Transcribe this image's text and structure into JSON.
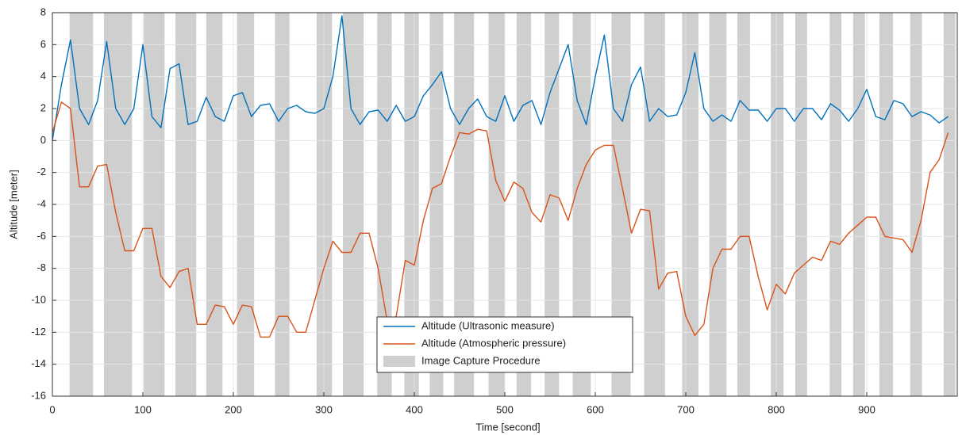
{
  "chart_data": {
    "type": "line",
    "xlabel": "Time [second]",
    "ylabel": "Altitude [meter]",
    "xlim": [
      0,
      1000
    ],
    "ylim": [
      -16,
      8
    ],
    "xticks": [
      0,
      100,
      200,
      300,
      400,
      500,
      600,
      700,
      800,
      900
    ],
    "yticks": [
      -16,
      -14,
      -12,
      -10,
      -8,
      -6,
      -4,
      -2,
      0,
      2,
      4,
      6,
      8
    ],
    "grid": true,
    "legend": "lower center",
    "bands": {
      "name": "Image Capture Procedure",
      "color": "#cfcfcf",
      "intervals": [
        [
          19,
          45
        ],
        [
          57,
          88
        ],
        [
          101,
          124
        ],
        [
          136,
          159
        ],
        [
          170,
          188
        ],
        [
          204,
          223
        ],
        [
          246,
          262
        ],
        [
          292,
          309
        ],
        [
          321,
          344
        ],
        [
          359,
          375
        ],
        [
          389,
          405
        ],
        [
          417,
          432
        ],
        [
          444,
          466
        ],
        [
          482,
          500
        ],
        [
          513,
          529
        ],
        [
          544,
          560
        ],
        [
          575,
          595
        ],
        [
          618,
          639
        ],
        [
          654,
          677
        ],
        [
          696,
          714
        ],
        [
          726,
          745
        ],
        [
          757,
          771
        ],
        [
          794,
          808
        ],
        [
          821,
          834
        ],
        [
          859,
          872
        ],
        [
          885,
          898
        ],
        [
          914,
          929
        ],
        [
          948,
          961
        ],
        [
          985,
          998
        ]
      ]
    },
    "x": [
      0,
      10,
      20,
      30,
      40,
      50,
      60,
      70,
      80,
      90,
      100,
      110,
      120,
      130,
      140,
      150,
      160,
      170,
      180,
      190,
      200,
      210,
      220,
      230,
      240,
      250,
      260,
      270,
      280,
      290,
      300,
      310,
      320,
      330,
      340,
      350,
      360,
      370,
      380,
      390,
      400,
      410,
      420,
      430,
      440,
      450,
      460,
      470,
      480,
      490,
      500,
      510,
      520,
      530,
      540,
      550,
      560,
      570,
      580,
      590,
      600,
      610,
      620,
      630,
      640,
      650,
      660,
      670,
      680,
      690,
      700,
      710,
      720,
      730,
      740,
      750,
      760,
      770,
      780,
      790,
      800,
      810,
      820,
      830,
      840,
      850,
      860,
      870,
      880,
      890,
      900,
      910,
      920,
      930,
      940,
      950,
      960,
      970,
      980,
      990
    ],
    "series": [
      {
        "name": "Altitude (Ultrasonic measure)",
        "color": "#0072bd",
        "values": [
          0,
          3.5,
          6.3,
          2,
          1,
          2.5,
          6.2,
          2,
          1,
          2,
          6,
          1.5,
          0.8,
          4.5,
          4.8,
          1,
          1.2,
          2.7,
          1.5,
          1.2,
          2.8,
          3,
          1.5,
          2.2,
          2.3,
          1.2,
          2,
          2.2,
          1.8,
          1.7,
          2,
          4,
          7.8,
          2,
          1,
          1.8,
          1.9,
          1.2,
          2.2,
          1.2,
          1.5,
          2.8,
          3.5,
          4.3,
          2,
          1,
          2,
          2.6,
          1.5,
          1.2,
          2.8,
          1.2,
          2.2,
          2.5,
          1,
          3,
          4.5,
          6,
          2.5,
          1,
          4,
          6.6,
          2,
          1.2,
          3.5,
          4.6,
          1.2,
          2,
          1.5,
          1.6,
          3,
          5.5,
          2,
          1.2,
          1.6,
          1.2,
          2.5,
          1.9,
          1.9,
          1.2,
          2,
          2,
          1.2,
          2,
          2,
          1.3,
          2.3,
          1.9,
          1.2,
          2,
          3.2,
          1.5,
          1.3,
          2.5,
          2.3,
          1.5,
          1.8,
          1.6,
          1.1,
          1.5
        ]
      },
      {
        "name": "Altitude (Atmospheric pressure)",
        "color": "#d95319",
        "values": [
          0.5,
          2.4,
          2,
          -2.9,
          -2.9,
          -1.6,
          -1.5,
          -4.5,
          -6.9,
          -6.9,
          -5.5,
          -5.5,
          -8.5,
          -9.2,
          -8.2,
          -8,
          -11.5,
          -11.5,
          -10.3,
          -10.4,
          -11.5,
          -10.3,
          -10.4,
          -12.3,
          -12.3,
          -11,
          -11,
          -12,
          -12,
          -10,
          -8,
          -6.3,
          -7,
          -7,
          -5.8,
          -5.8,
          -8,
          -11.3,
          -11,
          -7.5,
          -7.8,
          -5,
          -3,
          -2.7,
          -1,
          0.5,
          0.4,
          0.7,
          0.6,
          -2.5,
          -3.8,
          -2.6,
          -3,
          -4.5,
          -5.1,
          -3.4,
          -3.6,
          -5,
          -3,
          -1.5,
          -0.6,
          -0.3,
          -0.3,
          -3,
          -5.8,
          -4.3,
          -4.4,
          -9.3,
          -8.3,
          -8.2,
          -11,
          -12.2,
          -11.5,
          -8,
          -6.8,
          -6.8,
          -6,
          -6,
          -8.5,
          -10.6,
          -9,
          -9.6,
          -8.3,
          -7.8,
          -7.3,
          -7.5,
          -6.3,
          -6.5,
          -5.8,
          -5.3,
          -4.8,
          -4.8,
          -6,
          -6.1,
          -6.2,
          -7,
          -5,
          -2,
          -1.2,
          0.5
        ]
      }
    ]
  }
}
